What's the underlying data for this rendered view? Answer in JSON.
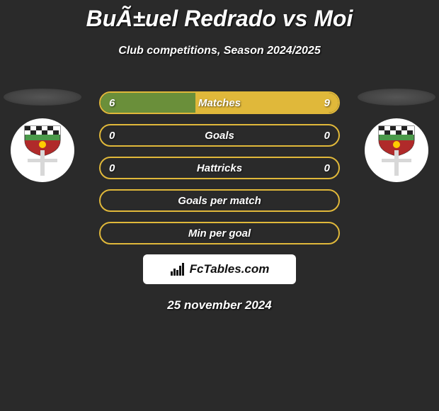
{
  "title": "BuÃ±uel Redrado vs Moi",
  "subtitle": "Club competitions, Season 2024/2025",
  "date": "25 november 2024",
  "brand": "FcTables.com",
  "colors": {
    "left_accent": "#6a8f3a",
    "right_accent": "#e0b83a",
    "border_base": "#e0b83a",
    "background": "#2a2a2a",
    "text": "#ffffff"
  },
  "crest": {
    "shield_top": "#4a9a4a",
    "shield_bottom": "#b02a2a",
    "checker_light": "#ffffff",
    "checker_dark": "#222222",
    "cross": "#e0e0e0"
  },
  "stats": [
    {
      "label": "Matches",
      "left_value": "6",
      "right_value": "9",
      "left_fill_pct": 40,
      "right_fill_pct": 60,
      "border_color": "#e0b83a",
      "left_fill_color": "#6a8f3a",
      "right_fill_color": "#e0b83a"
    },
    {
      "label": "Goals",
      "left_value": "0",
      "right_value": "0",
      "left_fill_pct": 0,
      "right_fill_pct": 0,
      "border_color": "#e0b83a",
      "left_fill_color": "#6a8f3a",
      "right_fill_color": "#e0b83a"
    },
    {
      "label": "Hattricks",
      "left_value": "0",
      "right_value": "0",
      "left_fill_pct": 0,
      "right_fill_pct": 0,
      "border_color": "#e0b83a",
      "left_fill_color": "#6a8f3a",
      "right_fill_color": "#e0b83a"
    },
    {
      "label": "Goals per match",
      "left_value": "",
      "right_value": "",
      "left_fill_pct": 0,
      "right_fill_pct": 0,
      "border_color": "#e0b83a",
      "left_fill_color": "#6a8f3a",
      "right_fill_color": "#e0b83a"
    },
    {
      "label": "Min per goal",
      "left_value": "",
      "right_value": "",
      "left_fill_pct": 0,
      "right_fill_pct": 0,
      "border_color": "#e0b83a",
      "left_fill_color": "#6a8f3a",
      "right_fill_color": "#e0b83a"
    }
  ]
}
